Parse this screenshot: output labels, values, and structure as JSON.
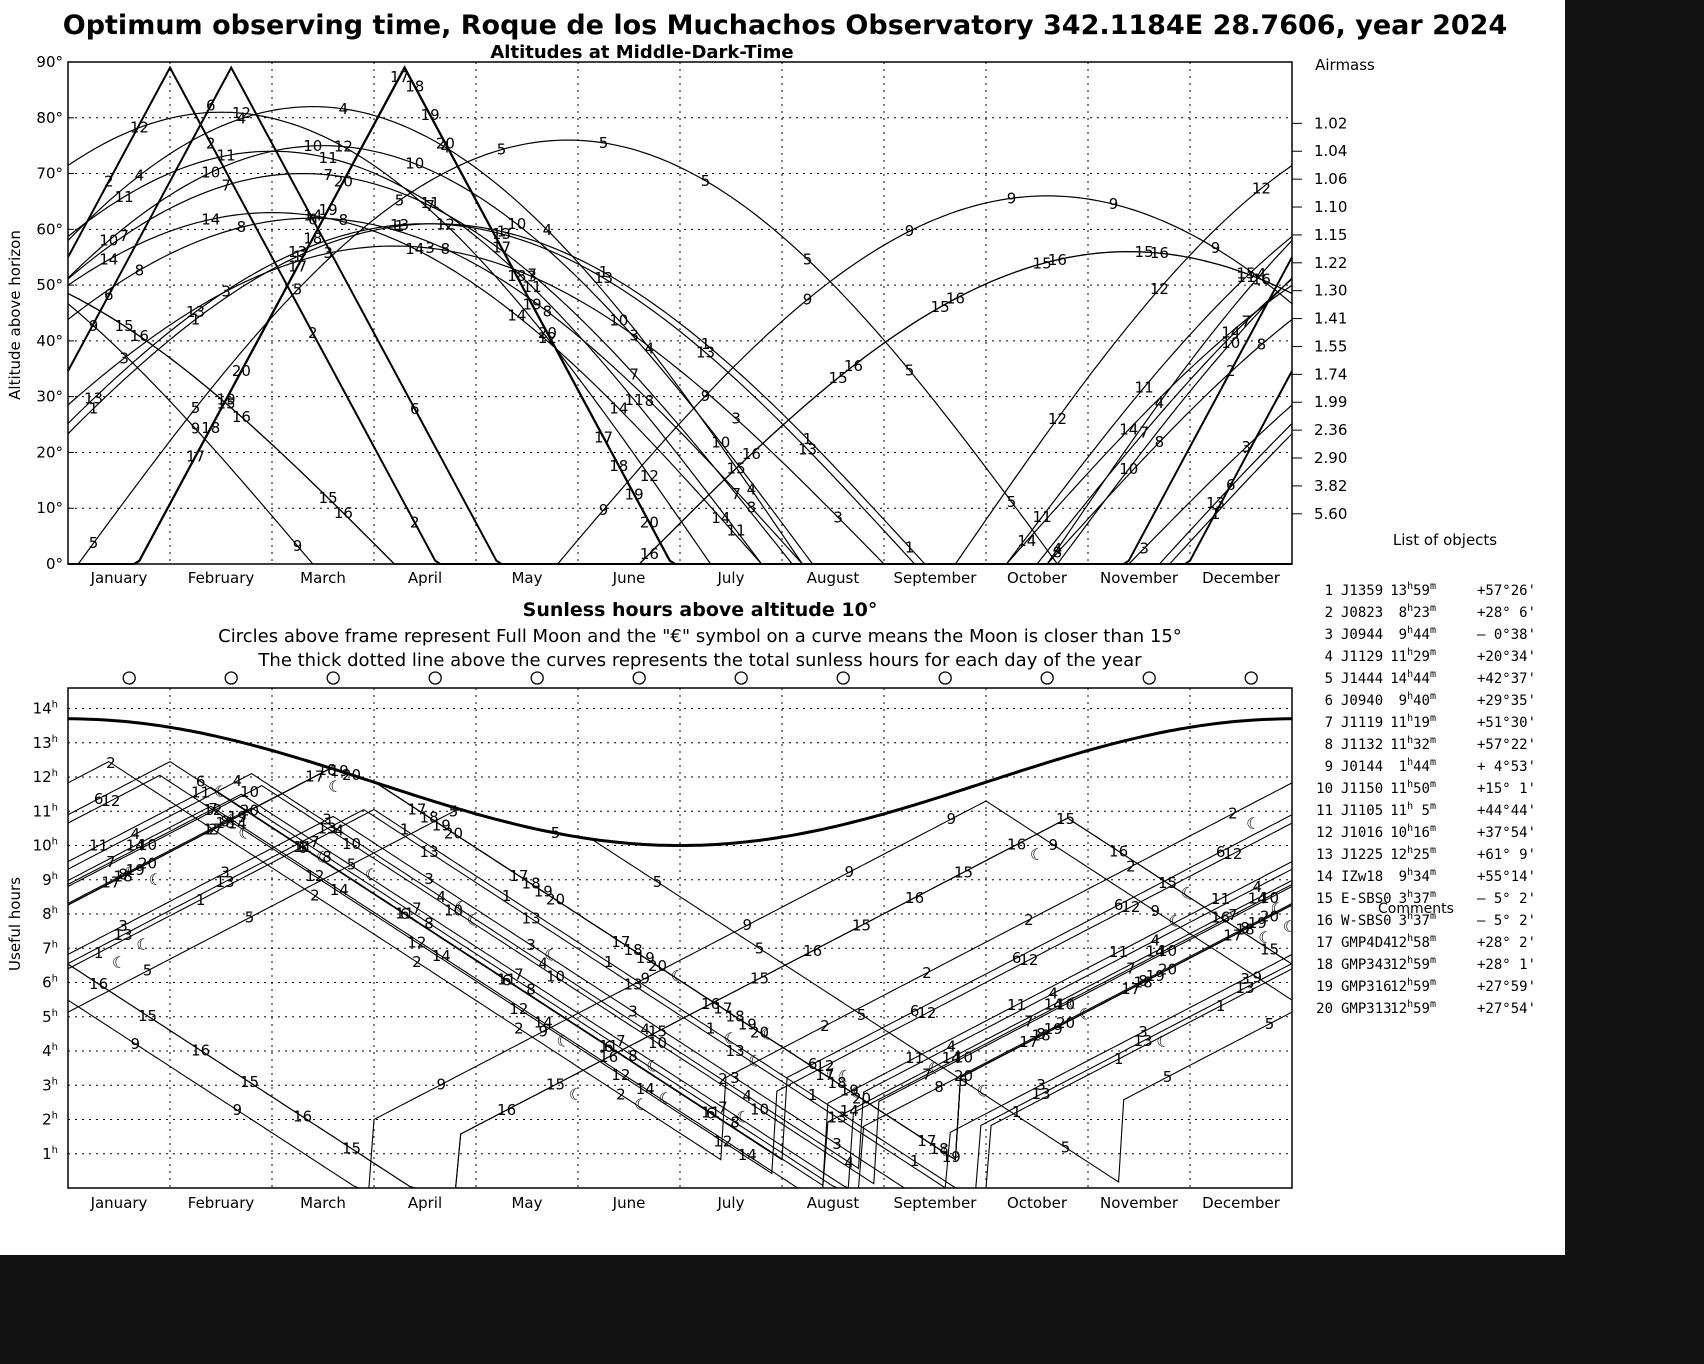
{
  "chart_data": [
    {
      "type": "line",
      "title": "Optimum observing time, Roque de los Muchachos Observatory 342.1184E  28.7606, year 2024",
      "subtitle": "Altitudes at Middle-Dark-Time",
      "ylabel": "Altitude above horizon",
      "y2label": "Airmass",
      "ylim": [
        0,
        90
      ],
      "yticks": [
        "0°",
        "10°",
        "20°",
        "30°",
        "40°",
        "50°",
        "60°",
        "70°",
        "80°",
        "90°"
      ],
      "airmass_ticks": [
        {
          "alt": 79,
          "label": "1.02"
        },
        {
          "alt": 74,
          "label": "1.04"
        },
        {
          "alt": 69,
          "label": "1.06"
        },
        {
          "alt": 64,
          "label": "1.10"
        },
        {
          "alt": 59,
          "label": "1.15"
        },
        {
          "alt": 54,
          "label": "1.22"
        },
        {
          "alt": 49,
          "label": "1.30"
        },
        {
          "alt": 44,
          "label": "1.41"
        },
        {
          "alt": 39,
          "label": "1.55"
        },
        {
          "alt": 34,
          "label": "1.74"
        },
        {
          "alt": 29,
          "label": "1.99"
        },
        {
          "alt": 24,
          "label": "2.36"
        },
        {
          "alt": 19,
          "label": "2.90"
        },
        {
          "alt": 14,
          "label": "3.82"
        },
        {
          "alt": 9,
          "label": "5.60"
        }
      ],
      "months": [
        "January",
        "February",
        "March",
        "April",
        "May",
        "June",
        "July",
        "August",
        "September",
        "October",
        "November",
        "December"
      ],
      "series": [
        {
          "label": "1",
          "peak_month": 3.6,
          "peak_alt": 61
        },
        {
          "label": "2",
          "peak_month": 1.0,
          "peak_alt": 89
        },
        {
          "label": "3",
          "peak_month": 3.2,
          "peak_alt": 57
        },
        {
          "label": "4",
          "peak_month": 2.4,
          "peak_alt": 82
        },
        {
          "label": "5",
          "peak_month": 4.9,
          "peak_alt": 76
        },
        {
          "label": "6",
          "peak_month": 1.6,
          "peak_alt": 89
        },
        {
          "label": "7",
          "peak_month": 2.3,
          "peak_alt": 70
        },
        {
          "label": "8",
          "peak_month": 2.4,
          "peak_alt": 62
        },
        {
          "label": "9",
          "peak_month": 9.6,
          "peak_alt": 66
        },
        {
          "label": "10",
          "peak_month": 2.5,
          "peak_alt": 75
        },
        {
          "label": "11",
          "peak_month": 2.0,
          "peak_alt": 74
        },
        {
          "label": "12",
          "peak_month": 1.5,
          "peak_alt": 81
        },
        {
          "label": "13",
          "peak_month": 3.5,
          "peak_alt": 61
        },
        {
          "label": "14",
          "peak_month": 2.0,
          "peak_alt": 63
        },
        {
          "label": "15",
          "peak_month": 10.4,
          "peak_alt": 56
        },
        {
          "label": "16",
          "peak_month": 10.4,
          "peak_alt": 56
        },
        {
          "label": "17",
          "peak_month": 3.3,
          "peak_alt": 89
        },
        {
          "label": "18",
          "peak_month": 3.3,
          "peak_alt": 89
        },
        {
          "label": "19",
          "peak_month": 3.3,
          "peak_alt": 89
        },
        {
          "label": "20",
          "peak_month": 3.3,
          "peak_alt": 89
        }
      ]
    },
    {
      "type": "line",
      "title": "Sunless hours above altitude 10°",
      "subtitle1": "Circles above frame represent Full Moon and the \"€\" symbol on a curve means the Moon is closer than 15°",
      "subtitle2": "The thick dotted line above the curves represents the total sunless hours for each day of the year",
      "ylabel": "Useful hours",
      "ylim": [
        0,
        14.6
      ],
      "yticks": [
        "1",
        "2",
        "3",
        "4",
        "5",
        "6",
        "7",
        "8",
        "9",
        "10",
        "11",
        "12",
        "13",
        "14"
      ],
      "ytick_unit": "h",
      "months": [
        "January",
        "February",
        "March",
        "April",
        "May",
        "June",
        "July",
        "August",
        "September",
        "October",
        "November",
        "December"
      ],
      "full_moon_months": [
        0.6,
        1.6,
        2.6,
        3.6,
        4.6,
        5.6,
        6.6,
        7.6,
        8.6,
        9.6,
        10.6,
        11.6
      ],
      "sunless_total_hours": {
        "start": 13.7,
        "mid_year_min": 10.0,
        "end": 13.7
      }
    }
  ],
  "object_list": {
    "title": "List of objects",
    "comments_label": "Comments",
    "rows": [
      {
        "n": "1",
        "name": "J1359",
        "ra_h": "13",
        "ra_m": "59",
        "dec": "+57°26'"
      },
      {
        "n": "2",
        "name": "J0823",
        "ra_h": "8",
        "ra_m": "23",
        "dec": "+28° 6'"
      },
      {
        "n": "3",
        "name": "J0944",
        "ra_h": "9",
        "ra_m": "44",
        "dec": "– 0°38'"
      },
      {
        "n": "4",
        "name": "J1129",
        "ra_h": "11",
        "ra_m": "29",
        "dec": "+20°34'"
      },
      {
        "n": "5",
        "name": "J1444",
        "ra_h": "14",
        "ra_m": "44",
        "dec": "+42°37'"
      },
      {
        "n": "6",
        "name": "J0940",
        "ra_h": "9",
        "ra_m": "40",
        "dec": "+29°35'"
      },
      {
        "n": "7",
        "name": "J1119",
        "ra_h": "11",
        "ra_m": "19",
        "dec": "+51°30'"
      },
      {
        "n": "8",
        "name": "J1132",
        "ra_h": "11",
        "ra_m": "32",
        "dec": "+57°22'"
      },
      {
        "n": "9",
        "name": "J0144",
        "ra_h": "1",
        "ra_m": "44",
        "dec": "+ 4°53'"
      },
      {
        "n": "10",
        "name": "J1150",
        "ra_h": "11",
        "ra_m": "50",
        "dec": "+15° 1'"
      },
      {
        "n": "11",
        "name": "J1105",
        "ra_h": "11",
        "ra_m": " 5",
        "dec": "+44°44'"
      },
      {
        "n": "12",
        "name": "J1016",
        "ra_h": "10",
        "ra_m": "16",
        "dec": "+37°54'"
      },
      {
        "n": "13",
        "name": "J1225",
        "ra_h": "12",
        "ra_m": "25",
        "dec": "+61° 9'"
      },
      {
        "n": "14",
        "name": "IZw18",
        "ra_h": "9",
        "ra_m": "34",
        "dec": "+55°14'"
      },
      {
        "n": "15",
        "name": "E-SBS0",
        "ra_h": "3",
        "ra_m": "37",
        "dec": "– 5° 2'"
      },
      {
        "n": "16",
        "name": "W-SBS0",
        "ra_h": "3",
        "ra_m": "37",
        "dec": "– 5° 2'"
      },
      {
        "n": "17",
        "name": "GMP4D4",
        "ra_h": "12",
        "ra_m": "58",
        "dec": "+28° 2'"
      },
      {
        "n": "18",
        "name": "GMP343",
        "ra_h": "12",
        "ra_m": "59",
        "dec": "+28° 1'"
      },
      {
        "n": "19",
        "name": "GMP316",
        "ra_h": "12",
        "ra_m": "59",
        "dec": "+27°59'"
      },
      {
        "n": "20",
        "name": "GMP313",
        "ra_h": "12",
        "ra_m": "59",
        "dec": "+27°54'"
      }
    ]
  },
  "colors": {
    "series_label": "#ff00ff",
    "moon_symbol": "#0000ff",
    "frame": "#000000",
    "outer_frame": "#111111",
    "background": "#ffffff"
  },
  "icons": {
    "moon_close": "moon-crescent-icon",
    "full_moon": "full-moon-circle-icon"
  }
}
